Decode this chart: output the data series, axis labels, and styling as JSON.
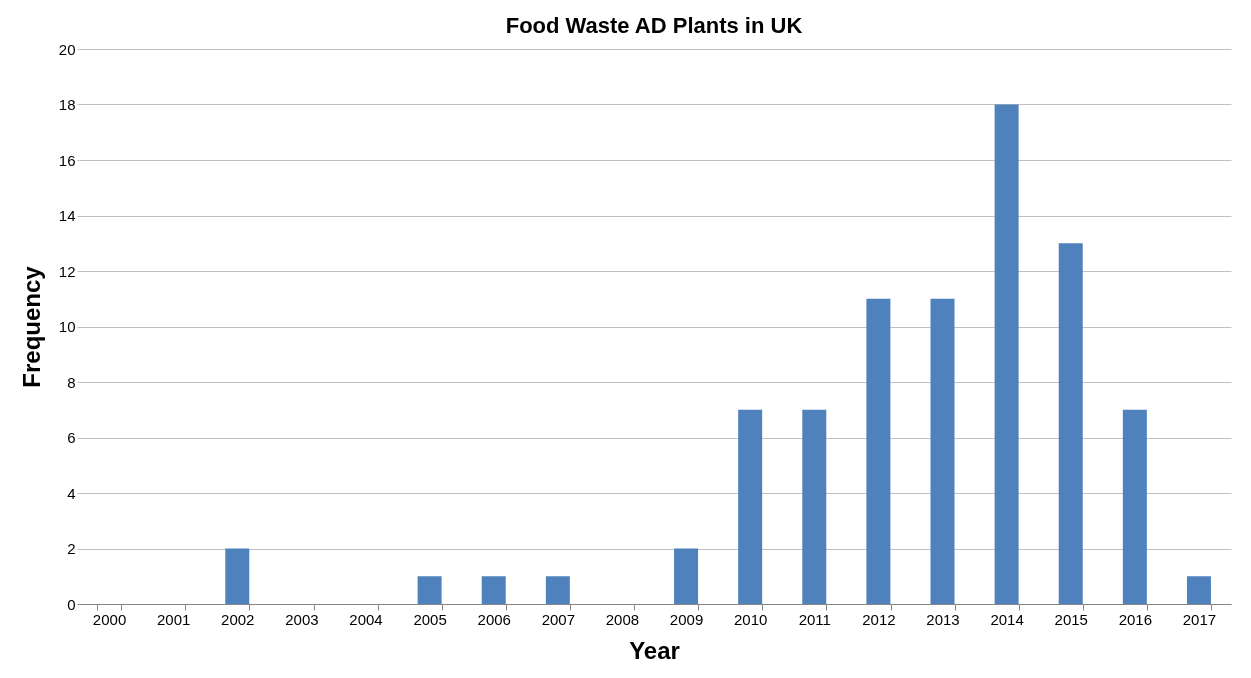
{
  "chart_data": {
    "type": "bar",
    "title": "Food Waste AD Plants in UK",
    "xlabel": "Year",
    "ylabel": "Frequency",
    "categories": [
      "2000",
      "2001",
      "2002",
      "2003",
      "2004",
      "2005",
      "2006",
      "2007",
      "2008",
      "2009",
      "2010",
      "2011",
      "2012",
      "2013",
      "2014",
      "2015",
      "2016",
      "2017"
    ],
    "values": [
      0,
      0,
      2,
      0,
      0,
      1,
      1,
      1,
      0,
      2,
      7,
      7,
      11,
      11,
      18,
      13,
      7,
      1
    ],
    "color": "#4f81bd",
    "ylim": [
      0,
      20
    ],
    "yticks": [
      0,
      2,
      4,
      6,
      8,
      10,
      12,
      14,
      16,
      18,
      20
    ],
    "grid": "y"
  }
}
